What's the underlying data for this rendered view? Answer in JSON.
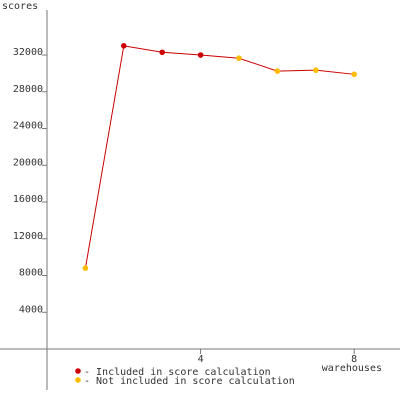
{
  "chart_data": {
    "type": "line",
    "y_label": "scores",
    "x_label": "warehouses",
    "x": [
      1,
      2,
      3,
      4,
      5,
      6,
      7,
      8
    ],
    "series": [
      {
        "color": "#cc0000",
        "values": [
          8800,
          33000,
          32300,
          32000,
          31650,
          30250,
          30350,
          29900
        ],
        "point_colors": [
          "#ffbb00",
          "#cc0000",
          "#cc0000",
          "#cc0000",
          "#ffbb00",
          "#ffbb00",
          "#ffbb00",
          "#ffbb00"
        ]
      }
    ],
    "legend": [
      {
        "name": "- Included in score calculation",
        "color": "#cc0000"
      },
      {
        "name": "- Not included in score calculation",
        "color": "#ffbb00"
      }
    ],
    "xlim": [
      -1.224,
      9.193
    ],
    "xticks": [
      4,
      8
    ],
    "ylim": [
      -4460,
      36900
    ],
    "yticks": [
      4000,
      8000,
      12000,
      16000,
      20000,
      24000,
      28000,
      32000
    ]
  }
}
